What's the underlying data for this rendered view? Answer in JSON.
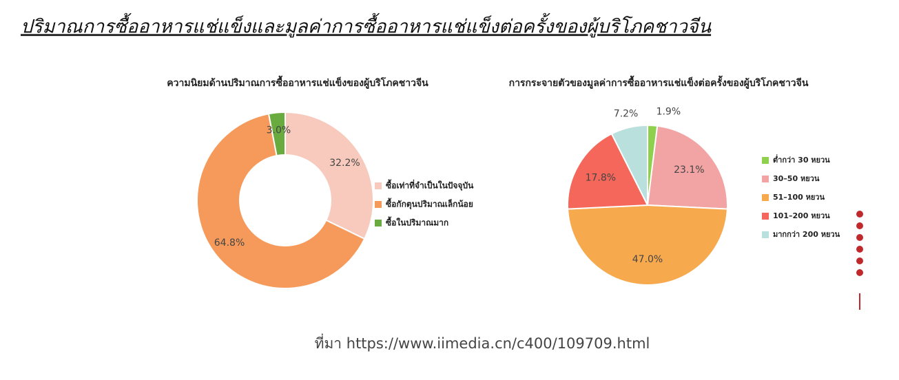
{
  "title": "ปริมาณการซื้ออาหารแช่แข็งและมูลค่าการซื้ออาหารแช่แข็งต่อครั้งของผู้บริโภคชาวจีน",
  "source": "ที่มา https://www.iimedia.cn/c400/109709.html",
  "chart_data": [
    {
      "type": "donut",
      "title": "ความนิยมด้านปริมาณการซื้ออาหารแช่แข็งของผู้บริโภคชาวจีน",
      "categories": [
        "ซื้อเท่าที่จำเป็นในปัจจุบัน",
        "ซื้อกักตุนปริมาณเล็กน้อย",
        "ซื้อในปริมาณมาก"
      ],
      "values": [
        32.2,
        64.8,
        3.0
      ],
      "value_labels": [
        "32.2%",
        "64.8%",
        "3.0%"
      ],
      "colors": [
        "#f7cabd",
        "#f59a5a",
        "#6aab3f"
      ]
    },
    {
      "type": "pie",
      "title": "การกระจายตัวของมูลค่าการซื้ออาหารแช่แข็งต่อครั้งของผู้บริโภคชาวจีน",
      "categories": [
        "ต่ำกว่า 30 หยวน",
        "30–50 หยวน",
        "51–100 หยวน",
        "101–200 หยวน",
        "มากกว่า 200 หยวน"
      ],
      "values": [
        1.9,
        23.1,
        47.0,
        17.8,
        7.2
      ],
      "value_labels": [
        "1.9%",
        "23.1%",
        "47.0%",
        "17.8%",
        "7.2%"
      ],
      "colors": [
        "#8fd14f",
        "#f2a3a3",
        "#f7a94e",
        "#f4675a",
        "#b9e0dc"
      ]
    }
  ]
}
